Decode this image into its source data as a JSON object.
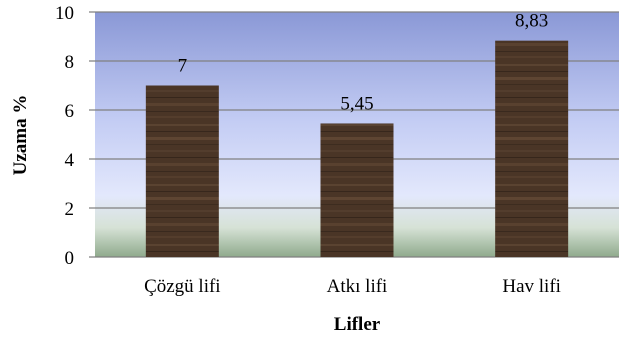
{
  "chart_data": {
    "type": "bar",
    "categories": [
      "Çözgü lifi",
      "Atkı lifi",
      "Hav lifi"
    ],
    "values": [
      7,
      5.45,
      8.83
    ],
    "data_labels": [
      "7",
      "5,45",
      "8,83"
    ],
    "xlabel": "Lifler",
    "ylabel": "Uzama %",
    "ylim": [
      0,
      10
    ],
    "yticks": [
      0,
      2,
      4,
      6,
      8,
      10
    ],
    "grid": true,
    "colors": {
      "background_top": "#8a98d6",
      "background_mid": "#dde3fb",
      "background_bottom": "#9fb49c",
      "bar": "#4a3526",
      "grid": "#808080"
    }
  }
}
